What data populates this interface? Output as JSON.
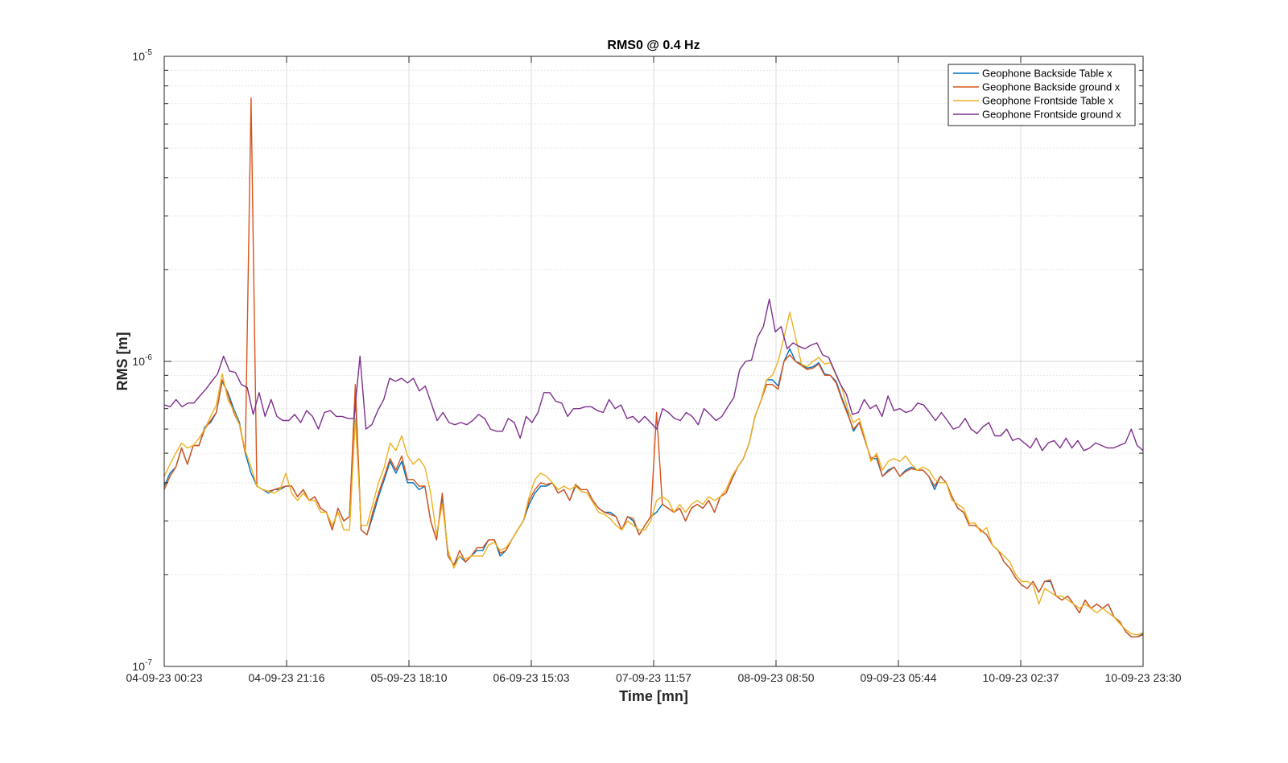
{
  "chart_data": {
    "type": "line",
    "title": "RMS0 @ 0.4 Hz",
    "xlabel": "Time [mn]",
    "ylabel": "RMS [m]",
    "yscale": "log",
    "ylim": [
      1e-07,
      1e-05
    ],
    "grid": true,
    "legend_position": "top-right",
    "x_tick_labels": [
      "04-09-23 00:23",
      "04-09-23 21:16",
      "05-09-23 18:10",
      "06-09-23 15:03",
      "07-09-23 11:57",
      "08-09-23 08:50",
      "09-09-23 05:44",
      "10-09-23 02:37",
      "10-09-23 23:30"
    ],
    "y_ticks": [
      {
        "base": "10",
        "exp": "-7",
        "value": 1e-07
      },
      {
        "base": "10",
        "exp": "-6",
        "value": 1e-06
      },
      {
        "base": "10",
        "exp": "-5",
        "value": 1e-05
      }
    ],
    "x_start": "04-09-23 00:23",
    "x_end": "10-09-23 23:30",
    "series": [
      {
        "name": "Geophone Backside Table x",
        "color": "#0072BD",
        "values": [
          3.9e-07,
          4.3e-07,
          4.5e-07,
          5.2e-07,
          4.6e-07,
          5.3e-07,
          5.3e-07,
          6.1e-07,
          6.3e-07,
          6.8e-07,
          8.6e-07,
          7.9e-07,
          7e-07,
          6.3e-07,
          5e-07,
          4.3e-07,
          3.9e-07,
          3.8e-07,
          3.7e-07,
          3.8e-07,
          3.8e-07,
          3.9e-07,
          3.9e-07,
          3.6e-07,
          3.8e-07,
          3.5e-07,
          3.6e-07,
          3.3e-07,
          3.2e-07,
          2.8e-07,
          3.3e-07,
          3e-07,
          3.1e-07,
          7.8e-07,
          2.8e-07,
          2.7e-07,
          3.1e-07,
          3.6e-07,
          4.1e-07,
          4.7e-07,
          4.3e-07,
          4.7e-07,
          4e-07,
          4e-07,
          3.8e-07,
          3.9e-07,
          3e-07,
          2.6e-07,
          3.6e-07,
          2.3e-07,
          2.15e-07,
          2.3e-07,
          2.2e-07,
          2.3e-07,
          2.4e-07,
          2.4e-07,
          2.6e-07,
          2.6e-07,
          2.3e-07,
          2.4e-07,
          2.6e-07,
          2.8e-07,
          3e-07,
          3.4e-07,
          3.7e-07,
          3.9e-07,
          3.9e-07,
          4e-07,
          3.7e-07,
          3.8e-07,
          3.5e-07,
          3.9e-07,
          3.8e-07,
          3.8e-07,
          3.5e-07,
          3.3e-07,
          3.2e-07,
          3.2e-07,
          3.1e-07,
          2.8e-07,
          3.1e-07,
          3e-07,
          2.7e-07,
          2.9e-07,
          3.1e-07,
          3.2e-07,
          3.4e-07,
          3.3e-07,
          3.2e-07,
          3.3e-07,
          3e-07,
          3.3e-07,
          3.4e-07,
          3.3e-07,
          3.5e-07,
          3.2e-07,
          3.6e-07,
          3.7e-07,
          4.1e-07,
          4.5e-07,
          4.8e-07,
          5.4e-07,
          6.6e-07,
          7.4e-07,
          8.7e-07,
          8.7e-07,
          8.3e-07,
          1e-06,
          1.1e-06,
          1e-06,
          9.8e-07,
          9.5e-07,
          9.6e-07,
          9.9e-07,
          9.1e-07,
          9e-07,
          8.6e-07,
          7.6e-07,
          6.8e-07,
          5.9e-07,
          6.3e-07,
          5.5e-07,
          4.8e-07,
          4.8e-07,
          4.2e-07,
          4.4e-07,
          4.5e-07,
          4.2e-07,
          4.4e-07,
          4.5e-07,
          4.4e-07,
          4.4e-07,
          4.2e-07,
          3.8e-07,
          4.2e-07,
          4e-07,
          3.6e-07,
          3.3e-07,
          3.2e-07,
          2.9e-07,
          2.9e-07,
          2.8e-07,
          2.7e-07,
          2.5e-07,
          2.4e-07,
          2.2e-07,
          2.1e-07,
          1.95e-07,
          1.85e-07,
          1.8e-07,
          1.9e-07,
          1.75e-07,
          1.9e-07,
          1.9e-07,
          1.7e-07,
          1.65e-07,
          1.7e-07,
          1.6e-07,
          1.5e-07,
          1.65e-07,
          1.55e-07,
          1.6e-07,
          1.55e-07,
          1.6e-07,
          1.45e-07,
          1.4e-07,
          1.3e-07,
          1.25e-07,
          1.25e-07,
          1.28e-07
        ]
      },
      {
        "name": "Geophone Backside ground x",
        "color": "#D95319",
        "values": [
          3.8e-07,
          4.2e-07,
          4.5e-07,
          5.2e-07,
          4.6e-07,
          5.3e-07,
          5.3e-07,
          6e-07,
          6.4e-07,
          6.8e-07,
          8.7e-07,
          7.8e-07,
          6.8e-07,
          6.2e-07,
          5e-07,
          7.3e-06,
          3.9e-07,
          3.8e-07,
          3.75e-07,
          3.8e-07,
          3.85e-07,
          3.9e-07,
          3.9e-07,
          3.6e-07,
          3.8e-07,
          3.5e-07,
          3.6e-07,
          3.3e-07,
          3.2e-07,
          2.8e-07,
          3.3e-07,
          3e-07,
          3.1e-07,
          8.4e-07,
          2.8e-07,
          2.7e-07,
          3.2e-07,
          3.7e-07,
          4.2e-07,
          4.8e-07,
          4.4e-07,
          4.9e-07,
          4.1e-07,
          4.1e-07,
          3.9e-07,
          3.9e-07,
          3e-07,
          2.6e-07,
          3.7e-07,
          2.3e-07,
          2.15e-07,
          2.4e-07,
          2.2e-07,
          2.3e-07,
          2.45e-07,
          2.45e-07,
          2.6e-07,
          2.6e-07,
          2.35e-07,
          2.4e-07,
          2.6e-07,
          2.8e-07,
          3e-07,
          3.5e-07,
          3.8e-07,
          4e-07,
          3.95e-07,
          4e-07,
          3.7e-07,
          3.8e-07,
          3.5e-07,
          3.95e-07,
          3.8e-07,
          3.8e-07,
          3.5e-07,
          3.3e-07,
          3.2e-07,
          3.15e-07,
          3.1e-07,
          2.8e-07,
          3.1e-07,
          3.05e-07,
          2.7e-07,
          2.9e-07,
          3.1e-07,
          6.8e-07,
          3.4e-07,
          3.3e-07,
          3.2e-07,
          3.3e-07,
          3e-07,
          3.3e-07,
          3.4e-07,
          3.3e-07,
          3.5e-07,
          3.2e-07,
          3.6e-07,
          3.7e-07,
          4.1e-07,
          4.5e-07,
          4.8e-07,
          5.4e-07,
          6.6e-07,
          7.4e-07,
          8.4e-07,
          8.4e-07,
          8.1e-07,
          1e-06,
          1.05e-06,
          1e-06,
          9.7e-07,
          9.4e-07,
          9.5e-07,
          9.8e-07,
          9e-07,
          9e-07,
          8.5e-07,
          7.5e-07,
          6.7e-07,
          6e-07,
          6.3e-07,
          5.5e-07,
          4.8e-07,
          4.9e-07,
          4.2e-07,
          4.35e-07,
          4.5e-07,
          4.2e-07,
          4.35e-07,
          4.45e-07,
          4.4e-07,
          4.4e-07,
          4.2e-07,
          3.9e-07,
          4.2e-07,
          4e-07,
          3.6e-07,
          3.3e-07,
          3.2e-07,
          2.9e-07,
          2.9e-07,
          2.8e-07,
          2.7e-07,
          2.5e-07,
          2.4e-07,
          2.2e-07,
          2.1e-07,
          1.95e-07,
          1.85e-07,
          1.8e-07,
          1.9e-07,
          1.75e-07,
          1.9e-07,
          1.92e-07,
          1.7e-07,
          1.65e-07,
          1.7e-07,
          1.6e-07,
          1.5e-07,
          1.65e-07,
          1.55e-07,
          1.6e-07,
          1.55e-07,
          1.6e-07,
          1.45e-07,
          1.4e-07,
          1.3e-07,
          1.25e-07,
          1.25e-07,
          1.27e-07
        ]
      },
      {
        "name": "Geophone Frontside Table x",
        "color": "#EDB120",
        "values": [
          4.2e-07,
          4.6e-07,
          5e-07,
          5.4e-07,
          5.2e-07,
          5.3e-07,
          5.6e-07,
          6e-07,
          6.6e-07,
          7.2e-07,
          9.1e-07,
          7.5e-07,
          6.9e-07,
          6.2e-07,
          5.1e-07,
          4.5e-07,
          3.9e-07,
          3.8e-07,
          3.75e-07,
          3.7e-07,
          3.8e-07,
          4.3e-07,
          3.7e-07,
          3.5e-07,
          3.7e-07,
          3.5e-07,
          3.5e-07,
          3.2e-07,
          3.2e-07,
          2.9e-07,
          3.2e-07,
          2.8e-07,
          2.8e-07,
          6.5e-07,
          2.9e-07,
          2.9e-07,
          3.4e-07,
          4e-07,
          4.5e-07,
          5.4e-07,
          5.1e-07,
          5.7e-07,
          4.9e-07,
          4.6e-07,
          4.8e-07,
          4.5e-07,
          3.7e-07,
          2.7e-07,
          3.4e-07,
          2.4e-07,
          2.1e-07,
          2.3e-07,
          2.25e-07,
          2.3e-07,
          2.3e-07,
          2.3e-07,
          2.5e-07,
          2.55e-07,
          2.4e-07,
          2.45e-07,
          2.6e-07,
          2.8e-07,
          3e-07,
          3.6e-07,
          4.1e-07,
          4.3e-07,
          4.2e-07,
          4e-07,
          3.8e-07,
          3.9e-07,
          3.8e-07,
          3.9e-07,
          3.75e-07,
          3.7e-07,
          3.45e-07,
          3.2e-07,
          3.15e-07,
          3.05e-07,
          2.9e-07,
          2.8e-07,
          3e-07,
          2.9e-07,
          2.8e-07,
          2.8e-07,
          3e-07,
          3.5e-07,
          3.6e-07,
          3.5e-07,
          3.2e-07,
          3.4e-07,
          3.2e-07,
          3.4e-07,
          3.5e-07,
          3.4e-07,
          3.6e-07,
          3.5e-07,
          3.6e-07,
          3.8e-07,
          4.2e-07,
          4.5e-07,
          4.8e-07,
          5.4e-07,
          6.6e-07,
          7.4e-07,
          8.7e-07,
          9e-07,
          1e-06,
          1.2e-06,
          1.45e-06,
          1.2e-06,
          9.8e-07,
          9.6e-07,
          1e-06,
          1.03e-06,
          9.8e-07,
          9.9e-07,
          9e-07,
          8.2e-07,
          7e-07,
          6.3e-07,
          6.5e-07,
          5.6e-07,
          4.7e-07,
          5e-07,
          4.4e-07,
          4.7e-07,
          4.8e-07,
          4.7e-07,
          4.9e-07,
          4.6e-07,
          4.4e-07,
          4.5e-07,
          4.4e-07,
          4.1e-07,
          4e-07,
          4e-07,
          3.5e-07,
          3.4e-07,
          3.3e-07,
          2.95e-07,
          2.95e-07,
          2.75e-07,
          2.85e-07,
          2.5e-07,
          2.4e-07,
          2.3e-07,
          2.2e-07,
          2e-07,
          1.9e-07,
          1.9e-07,
          1.85e-07,
          1.6e-07,
          1.8e-07,
          1.75e-07,
          1.7e-07,
          1.7e-07,
          1.65e-07,
          1.6e-07,
          1.55e-07,
          1.6e-07,
          1.55e-07,
          1.5e-07,
          1.55e-07,
          1.5e-07,
          1.45e-07,
          1.38e-07,
          1.32e-07,
          1.28e-07,
          1.27e-07,
          1.29e-07
        ]
      },
      {
        "name": "Geophone Frontside ground x",
        "color": "#7E2F8E",
        "values": [
          7.2e-07,
          7.1e-07,
          7.5e-07,
          7.1e-07,
          7.3e-07,
          7.3e-07,
          7.7e-07,
          8.1e-07,
          8.6e-07,
          9.1e-07,
          1.04e-06,
          9.3e-07,
          9.2e-07,
          8.4e-07,
          8.2e-07,
          6.7e-07,
          7.9e-07,
          6.6e-07,
          7.5e-07,
          6.6e-07,
          6.4e-07,
          6.4e-07,
          6.7e-07,
          6.3e-07,
          6.9e-07,
          6.6e-07,
          6e-07,
          6.8e-07,
          6.9e-07,
          6.6e-07,
          6.6e-07,
          6.5e-07,
          6.5e-07,
          1.04e-06,
          6e-07,
          6.2e-07,
          6.9e-07,
          7.5e-07,
          8.8e-07,
          8.6e-07,
          8.8e-07,
          8.5e-07,
          8.8e-07,
          8e-07,
          8.3e-07,
          7.3e-07,
          6.4e-07,
          6.8e-07,
          6.3e-07,
          6.2e-07,
          6.3e-07,
          6.2e-07,
          6.4e-07,
          6.7e-07,
          6.5e-07,
          6e-07,
          5.9e-07,
          5.9e-07,
          6.5e-07,
          6.3e-07,
          5.6e-07,
          6.6e-07,
          6.3e-07,
          6.8e-07,
          7.9e-07,
          7.9e-07,
          7.4e-07,
          7.3e-07,
          6.6e-07,
          7e-07,
          7e-07,
          7.1e-07,
          7.1e-07,
          6.9e-07,
          6.8e-07,
          7.5e-07,
          7e-07,
          7.2e-07,
          6.5e-07,
          6.6e-07,
          6.3e-07,
          6.6e-07,
          6.3e-07,
          6e-07,
          7e-07,
          6.8e-07,
          6.5e-07,
          6.4e-07,
          6.8e-07,
          6.6e-07,
          6.2e-07,
          7e-07,
          6.7e-07,
          6.4e-07,
          6.6e-07,
          7.1e-07,
          7.6e-07,
          9.4e-07,
          1e-06,
          1.01e-06,
          1.2e-06,
          1.3e-06,
          1.6e-06,
          1.25e-06,
          1.3e-06,
          1.1e-06,
          1.15e-06,
          1.12e-06,
          1.1e-06,
          1.13e-06,
          1.15e-06,
          1.05e-06,
          1.03e-06,
          9.3e-07,
          8.4e-07,
          7.8e-07,
          6.7e-07,
          6.8e-07,
          7.5e-07,
          7e-07,
          7.2e-07,
          6.6e-07,
          7.7e-07,
          6.9e-07,
          7e-07,
          6.8e-07,
          6.9e-07,
          7.3e-07,
          7.2e-07,
          6.8e-07,
          6.4e-07,
          6.8e-07,
          6.4e-07,
          6e-07,
          6.1e-07,
          6.5e-07,
          6e-07,
          5.8e-07,
          6.1e-07,
          6.3e-07,
          5.7e-07,
          5.7e-07,
          6e-07,
          5.5e-07,
          5.6e-07,
          5.4e-07,
          5.2e-07,
          5.6e-07,
          5.1e-07,
          5.4e-07,
          5.5e-07,
          5.2e-07,
          5.6e-07,
          5.2e-07,
          5.5e-07,
          5.1e-07,
          5.2e-07,
          5.4e-07,
          5.3e-07,
          5.2e-07,
          5.2e-07,
          5.3e-07,
          5.4e-07,
          6e-07,
          5.3e-07,
          5.1e-07
        ]
      }
    ]
  }
}
